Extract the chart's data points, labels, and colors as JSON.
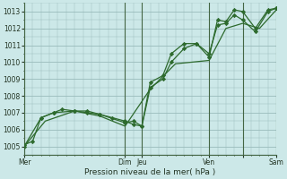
{
  "xlabel": "Pression niveau de la mer( hPa )",
  "bg_color": "#cce8e8",
  "grid_color": "#99bbbb",
  "line_color": "#2d6a2d",
  "sep_color": "#446644",
  "ylim": [
    1004.5,
    1013.5
  ],
  "xlim": [
    0,
    120
  ],
  "yticks": [
    1005,
    1006,
    1007,
    1008,
    1009,
    1010,
    1011,
    1012,
    1013
  ],
  "xtick_positions": [
    0,
    48,
    56,
    88,
    104,
    120
  ],
  "xtick_labels": [
    "Mer",
    "Dim",
    "Jeu",
    "Ven",
    "",
    "Sam"
  ],
  "day_lines": [
    0,
    48,
    56,
    88,
    104,
    120
  ],
  "series1_x": [
    0,
    4,
    8,
    14,
    18,
    24,
    30,
    36,
    48,
    52,
    56,
    60,
    66,
    70,
    76,
    82,
    88,
    92,
    96,
    100,
    104,
    110,
    116,
    120
  ],
  "series1_y": [
    1005.1,
    1005.3,
    1006.7,
    1007.0,
    1007.2,
    1007.1,
    1007.1,
    1006.9,
    1006.4,
    1006.5,
    1006.2,
    1008.8,
    1009.2,
    1010.5,
    1011.1,
    1011.1,
    1010.3,
    1012.5,
    1012.4,
    1013.1,
    1013.0,
    1012.0,
    1013.1,
    1013.2
  ],
  "series2_x": [
    0,
    8,
    14,
    24,
    30,
    36,
    42,
    48,
    52,
    56,
    60,
    66,
    70,
    76,
    82,
    88,
    92,
    96,
    100,
    104,
    110,
    116,
    120
  ],
  "series2_y": [
    1005.0,
    1006.7,
    1007.0,
    1007.1,
    1007.0,
    1006.9,
    1006.7,
    1006.5,
    1006.3,
    1006.2,
    1008.5,
    1009.0,
    1010.0,
    1010.8,
    1011.1,
    1010.5,
    1012.2,
    1012.3,
    1012.8,
    1012.5,
    1011.8,
    1013.0,
    1013.2
  ],
  "series3_x": [
    0,
    10,
    24,
    36,
    48,
    60,
    72,
    88,
    96,
    104,
    112,
    120
  ],
  "series3_y": [
    1005.0,
    1006.5,
    1007.1,
    1006.8,
    1006.2,
    1008.4,
    1009.9,
    1010.1,
    1012.0,
    1012.3,
    1012.0,
    1013.1
  ]
}
